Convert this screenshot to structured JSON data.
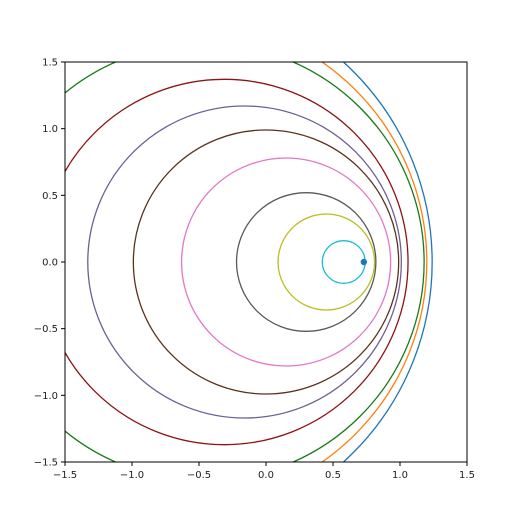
{
  "chart_data": {
    "type": "line",
    "title": "",
    "xlabel": "",
    "ylabel": "",
    "xlim": [
      -1.5,
      1.5
    ],
    "ylim": [
      -1.5,
      1.5
    ],
    "grid": false,
    "legend": "none",
    "x_ticks": [
      -1.5,
      -1.0,
      -0.5,
      0.0,
      0.5,
      1.0,
      1.5
    ],
    "y_ticks": [
      -1.5,
      -1.0,
      -0.5,
      0.0,
      0.5,
      1.0,
      1.5
    ],
    "x_tick_labels": [
      "−1.5",
      "−1.0",
      "−0.5",
      "0.0",
      "0.5",
      "1.0",
      "1.5"
    ],
    "y_tick_labels": [
      "−1.5",
      "−1.0",
      "−0.5",
      "0.0",
      "0.5",
      "1.0",
      "1.5"
    ],
    "point": {
      "x": 0.73,
      "y": 0.0,
      "color": "#1f77b4"
    },
    "circles": [
      {
        "cx": 0.58,
        "r": 0.16,
        "color": "#17becf"
      },
      {
        "cx": 0.45,
        "r": 0.36,
        "color": "#bcbd22"
      },
      {
        "cx": 0.3,
        "r": 0.52,
        "color": "#595959"
      },
      {
        "cx": 0.15,
        "r": 0.78,
        "color": "#e377c2"
      },
      {
        "cx": 0.0,
        "r": 0.99,
        "color": "#5a3320"
      },
      {
        "cx": -0.16,
        "r": 1.17,
        "color": "#6e5f94"
      },
      {
        "cx": -0.31,
        "r": 1.37,
        "color": "#8c1414"
      },
      {
        "cx": -0.46,
        "r": 1.64,
        "color": "#1a7a1a"
      },
      {
        "cx": -0.63,
        "r": 1.83,
        "color": "#ff7f0e"
      },
      {
        "cx": -0.79,
        "r": 2.03,
        "color": "#1f77b4"
      }
    ]
  }
}
